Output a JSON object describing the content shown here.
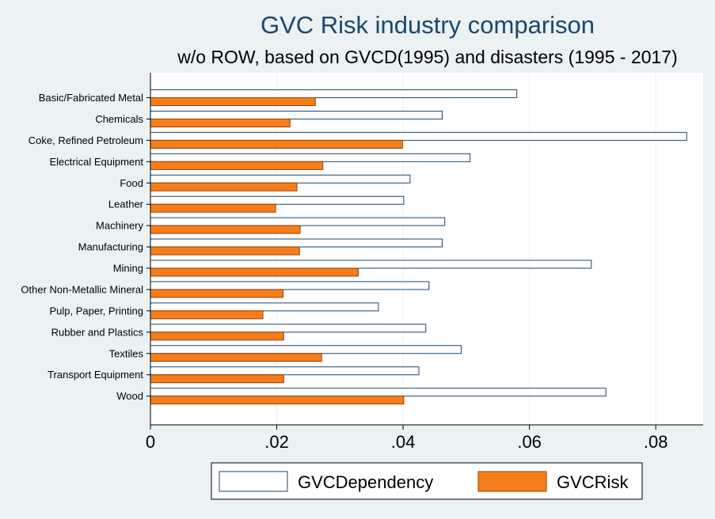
{
  "chart_data": {
    "type": "bar",
    "orientation": "horizontal",
    "title": "GVC Risk industry comparison",
    "subtitle": "w/o ROW, based on GVCD(1995) and disasters (1995 - 2017)",
    "xlabel": "",
    "ylabel": "",
    "xlim": [
      0,
      0.0875
    ],
    "x_ticks": [
      0,
      0.02,
      0.04,
      0.06,
      0.08
    ],
    "x_tick_labels": [
      "0",
      ".02",
      ".04",
      ".06",
      ".08"
    ],
    "grid": "vertical",
    "legend_position": "bottom",
    "categories": [
      "Basic/Fabricated Metal",
      "Chemicals",
      "Coke, Refined Petroleum",
      "Electrical Equipment",
      "Food",
      "Leather",
      "Machinery",
      "Manufacturing",
      "Mining",
      "Other Non-Metallic Mineral",
      "Pulp, Paper, Printing",
      "Rubber and Plastics",
      "Textiles",
      "Transport Equipment",
      "Wood"
    ],
    "series": [
      {
        "name": "GVCDependency",
        "fill": "#ffffff",
        "stroke": "#1a476f",
        "values": [
          0.058,
          0.0462,
          0.0849,
          0.0506,
          0.0411,
          0.0401,
          0.0466,
          0.0462,
          0.0698,
          0.0441,
          0.0361,
          0.0436,
          0.0492,
          0.0425,
          0.0721
        ]
      },
      {
        "name": "GVCRisk",
        "fill": "#f67e1a",
        "stroke": "#9b3d00",
        "values": [
          0.0261,
          0.0221,
          0.0399,
          0.0273,
          0.0232,
          0.0198,
          0.0237,
          0.0236,
          0.0329,
          0.021,
          0.0178,
          0.0211,
          0.0271,
          0.0211,
          0.0401
        ]
      }
    ]
  },
  "colors": {
    "background": "#eaf2f3",
    "plot_background": "#ffffff",
    "title": "#1a476f",
    "gridline": "#eaf2f3"
  }
}
